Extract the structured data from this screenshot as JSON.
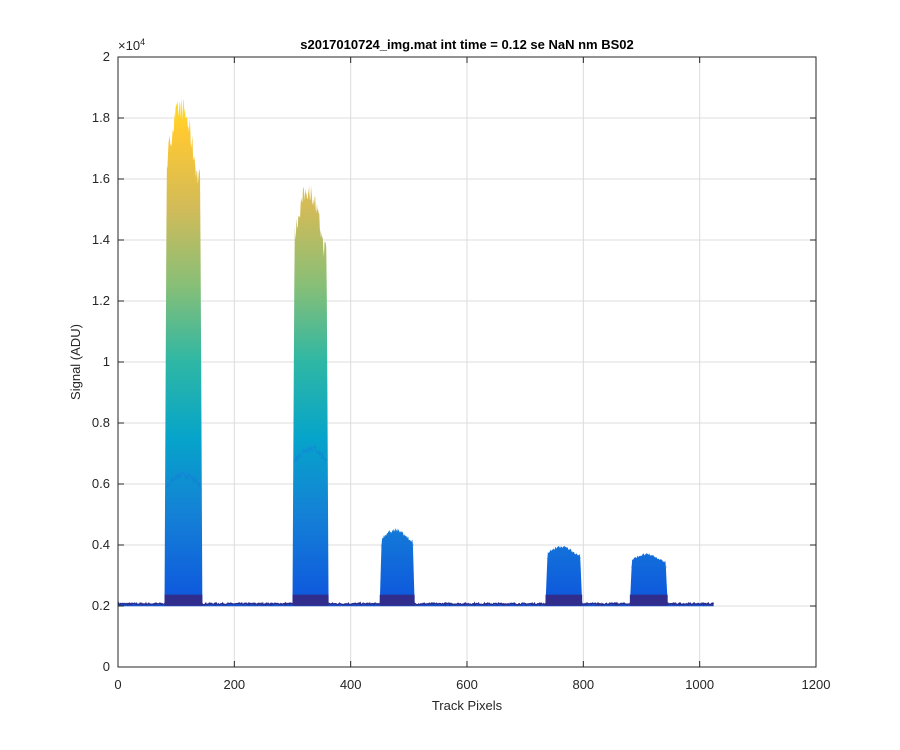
{
  "chart_data": {
    "type": "area",
    "title": "s2017010724_img.mat int time = 0.12 se  NaN nm BS02",
    "xlabel": "Track Pixels",
    "ylabel": "Signal (ADU)",
    "xlim": [
      0,
      1200
    ],
    "ylim": [
      0,
      20000
    ],
    "x_ticks": [
      0,
      200,
      400,
      600,
      800,
      1000,
      1200
    ],
    "y_ticks": [
      0,
      0.2,
      0.4,
      0.6,
      0.8,
      1,
      1.2,
      1.4,
      1.6,
      1.8,
      2
    ],
    "y_tick_labels": [
      "0",
      "0.2",
      "0.4",
      "0.6",
      "0.8",
      "1",
      "1.2",
      "1.4",
      "1.6",
      "1.8",
      "2"
    ],
    "y_exponent_label": "×10",
    "y_exponent_power": "4",
    "grid": true,
    "colormap": "parula",
    "colormap_stops": [
      "#352a87",
      "#0f5cdd",
      "#1481d6",
      "#06a4ca",
      "#2eb7a4",
      "#87bf77",
      "#d1bb59",
      "#fec832",
      "#f9fb0e"
    ],
    "baseline": 2070,
    "x_end": 1024,
    "peaks": [
      {
        "start": 80,
        "end": 145,
        "max": 18400,
        "shoulder_max": 6300
      },
      {
        "start": 300,
        "end": 362,
        "max": 15700,
        "shoulder_max": 7200
      },
      {
        "start": 450,
        "end": 510,
        "max": 4500,
        "shoulder_max": 4200
      },
      {
        "start": 735,
        "end": 798,
        "max": 3950,
        "shoulder_max": 3700
      },
      {
        "start": 880,
        "end": 945,
        "max": 3700,
        "shoulder_max": 3400
      }
    ]
  }
}
